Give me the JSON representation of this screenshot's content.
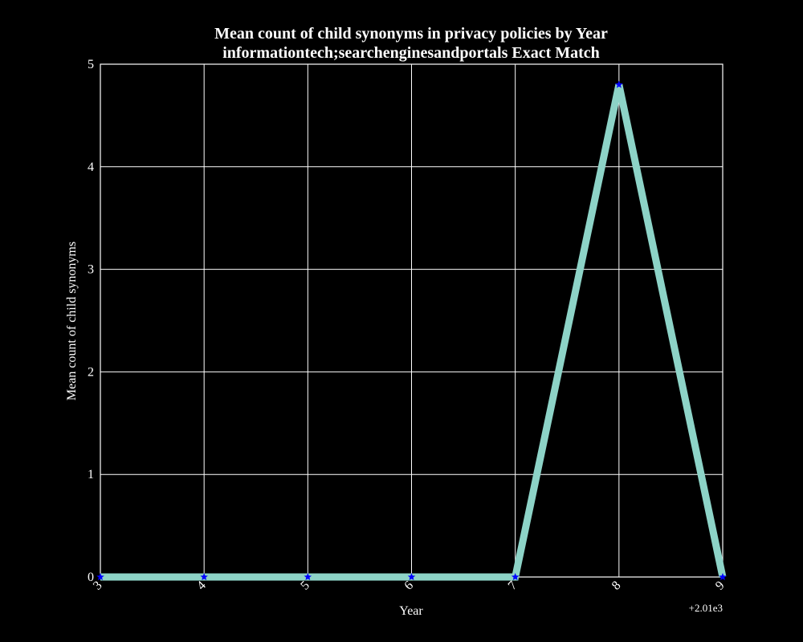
{
  "chart_data": {
    "type": "line",
    "title": "Mean count of child synonyms in privacy policies by Year",
    "subtitle": "informationtech;searchenginesandportals Exact Match",
    "xlabel": "Year",
    "ylabel": "Mean count of child synonyms",
    "x_offset_label": "+2.01e3",
    "x_tick_labels": [
      "3",
      "4",
      "5",
      "6",
      "7",
      "8",
      "9"
    ],
    "y_tick_labels": [
      "0",
      "1",
      "2",
      "3",
      "4",
      "5"
    ],
    "x": [
      2013,
      2014,
      2015,
      2016,
      2017,
      2018,
      2019
    ],
    "y": [
      0,
      0,
      0,
      0,
      0,
      4.8,
      0
    ],
    "xlim": [
      2013,
      2019
    ],
    "ylim": [
      0,
      5
    ],
    "grid": true,
    "line_color": "#8dd3c7",
    "marker_color": "#0000ff",
    "marker": "star",
    "background": "#000000",
    "foreground": "#ffffff"
  }
}
